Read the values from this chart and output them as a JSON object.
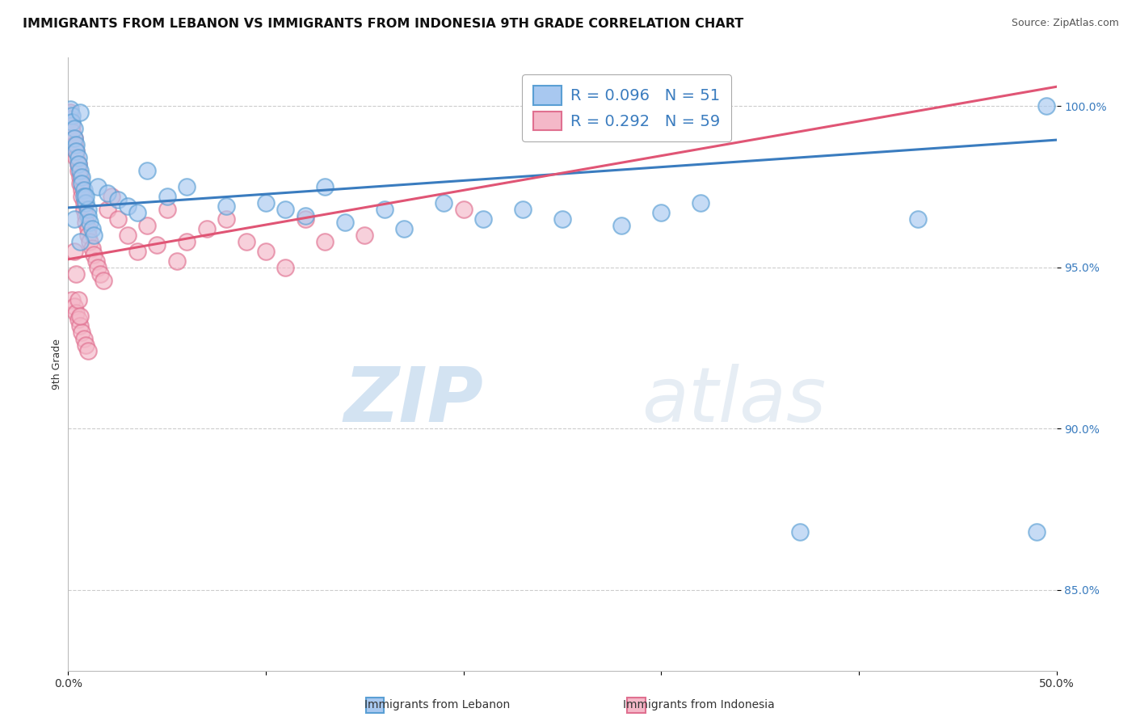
{
  "title": "IMMIGRANTS FROM LEBANON VS IMMIGRANTS FROM INDONESIA 9TH GRADE CORRELATION CHART",
  "source": "Source: ZipAtlas.com",
  "ylabel": "9th Grade",
  "xlim": [
    0.0,
    0.5
  ],
  "ylim": [
    0.825,
    1.015
  ],
  "lebanon_color": "#a8c8f0",
  "lebanon_edge": "#5a9fd4",
  "indonesia_color": "#f4b8c8",
  "indonesia_edge": "#e07090",
  "lebanon_R": 0.096,
  "lebanon_N": 51,
  "indonesia_R": 0.292,
  "indonesia_N": 59,
  "lebanon_trend_color": "#3a7cbf",
  "indonesia_trend_color": "#e05575",
  "watermark_color": "#cce0f5",
  "background_color": "#ffffff",
  "grid_color": "#cccccc",
  "ytick_color": "#3a7cbf",
  "title_fontsize": 11.5,
  "source_fontsize": 9,
  "axis_label_fontsize": 9,
  "tick_fontsize": 10,
  "legend_fontsize": 14,
  "scatter_size": 220,
  "scatter_alpha": 0.65,
  "scatter_linewidth": 1.5,
  "lebanon_x": [
    0.001,
    0.002,
    0.002,
    0.003,
    0.003,
    0.004,
    0.004,
    0.005,
    0.005,
    0.006,
    0.006,
    0.007,
    0.007,
    0.008,
    0.008,
    0.009,
    0.01,
    0.01,
    0.011,
    0.012,
    0.013,
    0.015,
    0.02,
    0.025,
    0.03,
    0.035,
    0.04,
    0.05,
    0.06,
    0.08,
    0.1,
    0.11,
    0.12,
    0.13,
    0.14,
    0.16,
    0.17,
    0.19,
    0.21,
    0.23,
    0.25,
    0.28,
    0.3,
    0.32,
    0.37,
    0.43,
    0.49,
    0.495,
    0.003,
    0.006,
    0.009
  ],
  "lebanon_y": [
    0.999,
    0.997,
    0.995,
    0.993,
    0.99,
    0.988,
    0.986,
    0.984,
    0.982,
    0.998,
    0.98,
    0.978,
    0.976,
    0.974,
    0.972,
    0.97,
    0.968,
    0.966,
    0.964,
    0.962,
    0.96,
    0.975,
    0.973,
    0.971,
    0.969,
    0.967,
    0.98,
    0.972,
    0.975,
    0.969,
    0.97,
    0.968,
    0.966,
    0.975,
    0.964,
    0.968,
    0.962,
    0.97,
    0.965,
    0.968,
    0.965,
    0.963,
    0.967,
    0.97,
    0.868,
    0.965,
    0.868,
    1.0,
    0.965,
    0.958,
    0.972
  ],
  "indonesia_x": [
    0.001,
    0.001,
    0.002,
    0.002,
    0.003,
    0.003,
    0.004,
    0.004,
    0.005,
    0.005,
    0.006,
    0.006,
    0.007,
    0.007,
    0.008,
    0.008,
    0.009,
    0.009,
    0.01,
    0.01,
    0.011,
    0.012,
    0.013,
    0.014,
    0.015,
    0.016,
    0.018,
    0.02,
    0.022,
    0.025,
    0.03,
    0.035,
    0.04,
    0.045,
    0.05,
    0.055,
    0.06,
    0.07,
    0.08,
    0.09,
    0.1,
    0.11,
    0.12,
    0.13,
    0.15,
    0.002,
    0.003,
    0.004,
    0.005,
    0.006,
    0.007,
    0.008,
    0.009,
    0.01,
    0.2,
    0.003,
    0.004,
    0.005,
    0.006
  ],
  "indonesia_y": [
    0.998,
    0.996,
    0.994,
    0.992,
    0.99,
    0.988,
    0.986,
    0.984,
    0.982,
    0.98,
    0.978,
    0.976,
    0.974,
    0.972,
    0.97,
    0.968,
    0.966,
    0.964,
    0.962,
    0.96,
    0.958,
    0.956,
    0.954,
    0.952,
    0.95,
    0.948,
    0.946,
    0.968,
    0.972,
    0.965,
    0.96,
    0.955,
    0.963,
    0.957,
    0.968,
    0.952,
    0.958,
    0.962,
    0.965,
    0.958,
    0.955,
    0.95,
    0.965,
    0.958,
    0.96,
    0.94,
    0.938,
    0.936,
    0.934,
    0.932,
    0.93,
    0.928,
    0.926,
    0.924,
    0.968,
    0.955,
    0.948,
    0.94,
    0.935
  ],
  "trendline_lebanon": [
    [
      0.0,
      0.9685
    ],
    [
      0.5,
      0.9895
    ]
  ],
  "trendline_indonesia": [
    [
      0.0,
      0.9525
    ],
    [
      0.5,
      1.006
    ]
  ]
}
